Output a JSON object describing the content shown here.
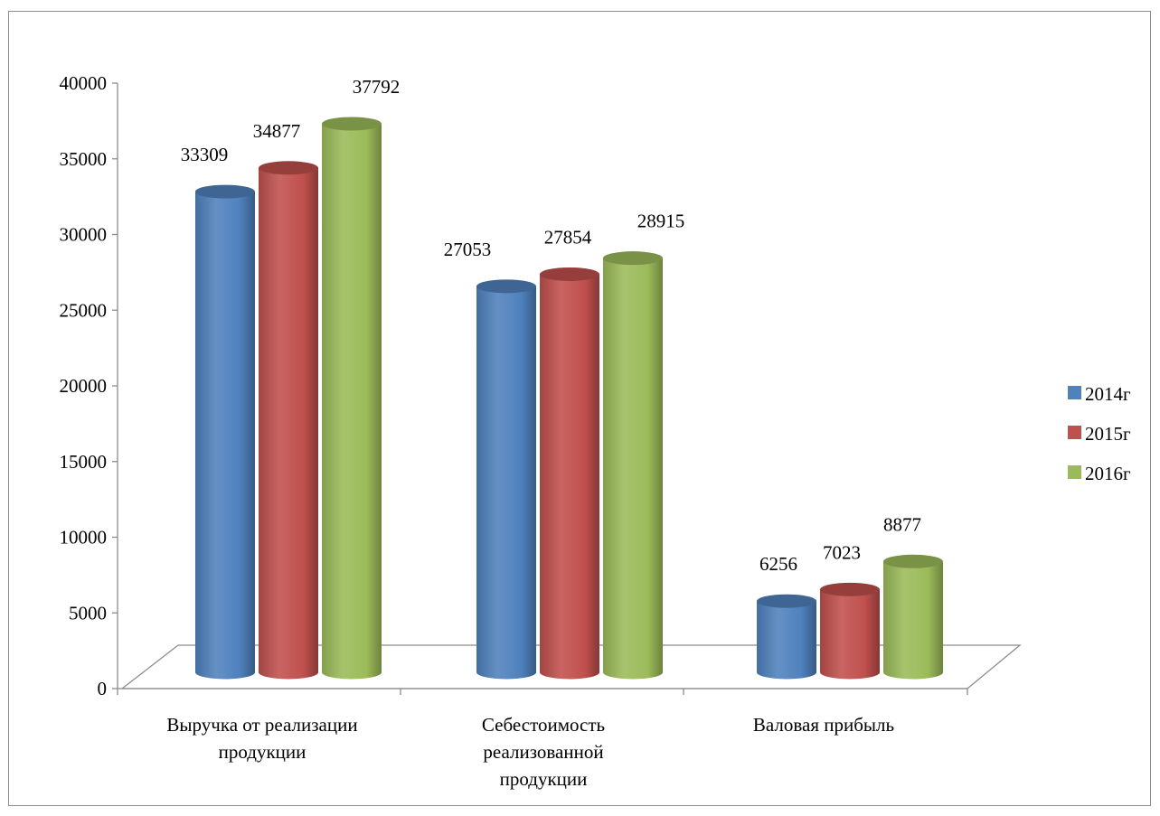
{
  "chart_data": {
    "type": "bar",
    "style": "3d-cylinder",
    "categories": [
      [
        "Выручка от реализации",
        "продукции"
      ],
      [
        "Себестоимость",
        "реализованной",
        "продукции"
      ],
      [
        "Валовая прибыль"
      ]
    ],
    "series": [
      {
        "name": "2014г",
        "color": "#4f81bd",
        "values": [
          33309,
          27053,
          6256
        ]
      },
      {
        "name": "2015г",
        "color": "#c0504d",
        "values": [
          34877,
          27854,
          7023
        ]
      },
      {
        "name": "2016г",
        "color": "#9bbb59",
        "values": [
          37792,
          28915,
          8877
        ]
      }
    ],
    "ylim": [
      0,
      40000
    ],
    "yticks": [
      0,
      5000,
      10000,
      15000,
      20000,
      25000,
      30000,
      35000,
      40000
    ],
    "data_labels": true,
    "legend": "right",
    "grid": false,
    "title": "",
    "xlabel": "",
    "ylabel": ""
  }
}
